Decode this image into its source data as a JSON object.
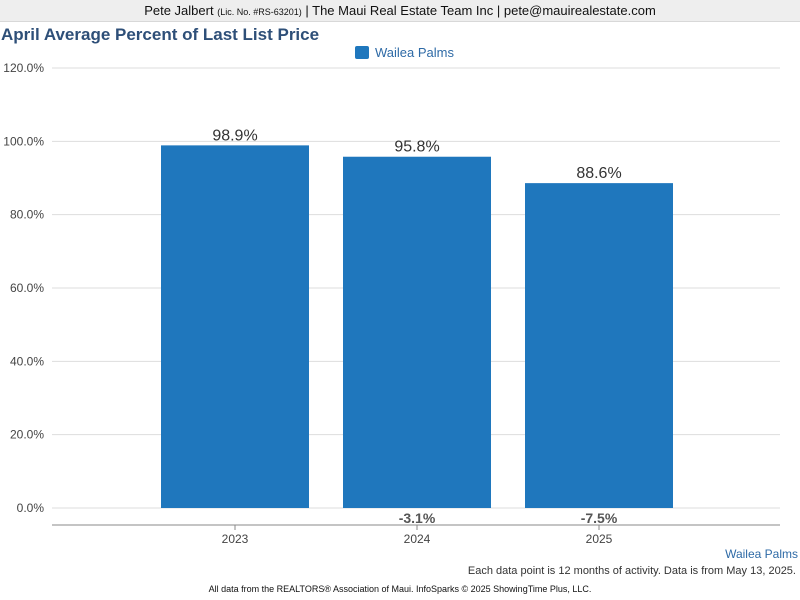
{
  "header": {
    "name": "Pete Jalbert",
    "license": "(Lic. No. #RS-63201)",
    "company_line": "| The Maui Real Estate Team Inc | pete@mauirealestate.com"
  },
  "colors": {
    "bar": "#1f77bd",
    "title": "#2e4f78",
    "accent": "#2e6aa6"
  },
  "chart_data": {
    "type": "bar",
    "title": "April Average Percent of Last List Price",
    "categories": [
      "2023",
      "2024",
      "2025"
    ],
    "series": [
      {
        "name": "Wailea Palms",
        "values": [
          98.9,
          95.8,
          88.6
        ]
      }
    ],
    "value_labels": [
      "98.9%",
      "95.8%",
      "88.6%"
    ],
    "change_labels": [
      "",
      "-3.1%",
      "-7.5%"
    ],
    "yticks": [
      "0.0%",
      "20.0%",
      "40.0%",
      "60.0%",
      "80.0%",
      "100.0%",
      "120.0%"
    ],
    "ylim": [
      0,
      120
    ],
    "grid": true,
    "legend": "top-center"
  },
  "footer": {
    "series_label": "Wailea Palms",
    "note": "Each data point is 12 months of activity. Data is from May 13, 2025.",
    "source": "All data from the REALTORS® Association of Maui. InfoSparks © 2025 ShowingTime Plus, LLC."
  }
}
